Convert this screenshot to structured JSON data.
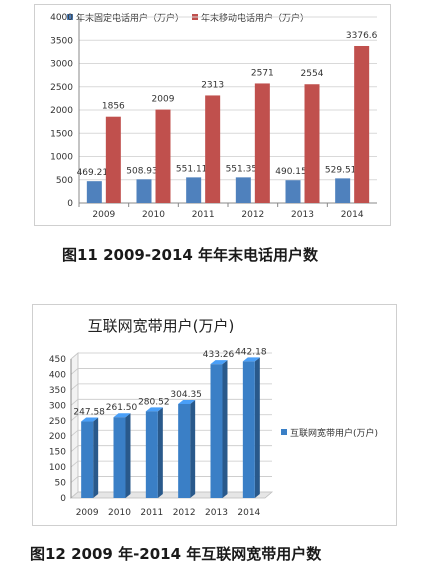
{
  "chart_data": [
    {
      "type": "bar",
      "categories": [
        "2009",
        "2010",
        "2011",
        "2012",
        "2013",
        "2014"
      ],
      "series": [
        {
          "name": "年末固定电话用户（万户）",
          "values": [
            469.21,
            508.93,
            551.11,
            551.35,
            490.15,
            529.51
          ],
          "color": "#4f81bd",
          "labels": [
            "469.21",
            "508.93",
            "551.11",
            "551.35",
            "490.15",
            "529.51"
          ]
        },
        {
          "name": "年末移动电话用户（万户）",
          "values": [
            1856,
            2009,
            2313,
            2571,
            2554,
            3376.6
          ],
          "color": "#c0504d",
          "labels": [
            "1856",
            "2009",
            "2313",
            "2571",
            "2554",
            "3376.6"
          ]
        }
      ],
      "ylim": [
        0,
        4000
      ],
      "yticks": [
        "0",
        "500",
        "1000",
        "1500",
        "2000",
        "2500",
        "3000",
        "3500",
        "4000"
      ],
      "grid": true,
      "legend": "top"
    },
    {
      "type": "bar",
      "title": "互联网宽带用户(万户)",
      "categories": [
        "2009",
        "2010",
        "2011",
        "2012",
        "2013",
        "2014"
      ],
      "series": [
        {
          "name": "互联网宽带用户(万户)",
          "values": [
            247.58,
            261.5,
            280.52,
            304.35,
            433.26,
            442.18
          ],
          "color": "#3a7fc6",
          "labels": [
            "247.58",
            "261.50",
            "280.52",
            "304.35",
            "433.26",
            "442.18"
          ]
        }
      ],
      "ylim": [
        0,
        450
      ],
      "yticks": [
        "0",
        "50",
        "100",
        "150",
        "200",
        "250",
        "300",
        "350",
        "400",
        "450"
      ],
      "grid": true,
      "legend": "right"
    }
  ],
  "captions": {
    "fig11": "图11  2009-2014 年年末电话用户数",
    "fig12": "图12    2009 年-2014 年互联网宽带用户数"
  }
}
